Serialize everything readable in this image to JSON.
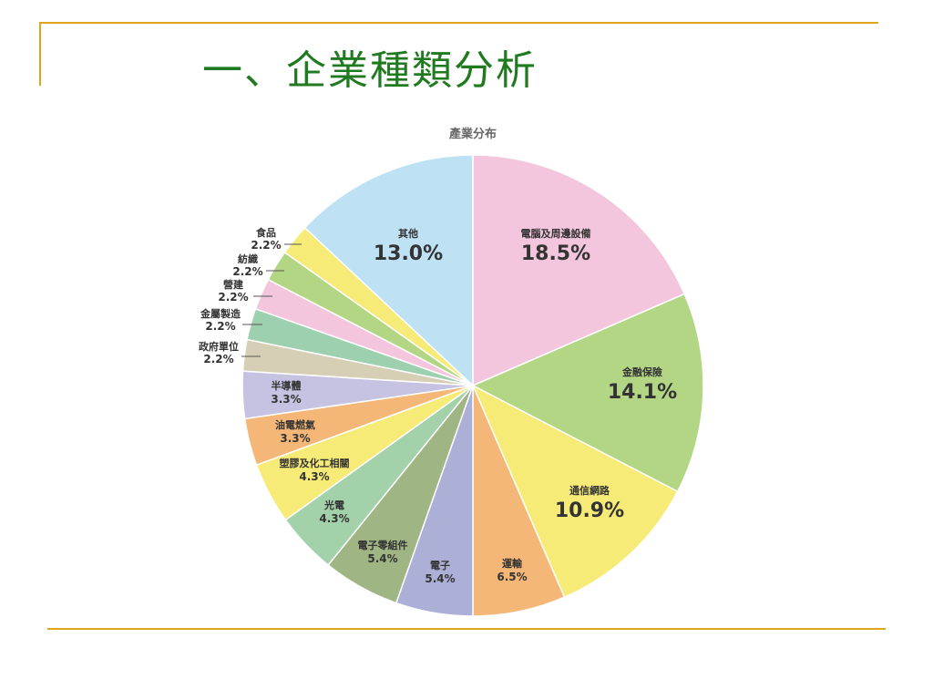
{
  "slide": {
    "title": "一、企業種類分析",
    "accent_color": "#E0A61A",
    "title_color": "#207A20"
  },
  "chart_data": {
    "type": "pie",
    "title": "產業分布",
    "unit": "%",
    "start": "top, clockwise",
    "slices": [
      {
        "label": "電腦及周邊設備",
        "value": 18.5,
        "display": "18.5%",
        "color": "#F4C6DD"
      },
      {
        "label": "金融保險",
        "value": 14.1,
        "display": "14.1%",
        "color": "#B2D684"
      },
      {
        "label": "通信網路",
        "value": 10.9,
        "display": "10.9%",
        "color": "#F7EB77"
      },
      {
        "label": "運輸",
        "value": 6.5,
        "display": "6.5%",
        "color": "#F5B777"
      },
      {
        "label": "電子",
        "value": 5.4,
        "display": "5.4%",
        "color": "#ACAFD6"
      },
      {
        "label": "電子零組件",
        "value": 5.4,
        "display": "5.4%",
        "color": "#9FB583"
      },
      {
        "label": "光電",
        "value": 4.3,
        "display": "4.3%",
        "color": "#A3D2AA"
      },
      {
        "label": "塑膠及化工相關",
        "value": 4.3,
        "display": "4.3%",
        "color": "#F7EB77"
      },
      {
        "label": "油電燃氣",
        "value": 3.3,
        "display": "3.3%",
        "color": "#F5B777"
      },
      {
        "label": "半導體",
        "value": 3.3,
        "display": "3.3%",
        "color": "#C6C2E1"
      },
      {
        "label": "政府單位",
        "value": 2.2,
        "display": "2.2%",
        "color": "#D6CFB5"
      },
      {
        "label": "金屬製造",
        "value": 2.2,
        "display": "2.2%",
        "color": "#9DD0AE"
      },
      {
        "label": "營建",
        "value": 2.2,
        "display": "2.2%",
        "color": "#F4C6DD"
      },
      {
        "label": "紡織",
        "value": 2.2,
        "display": "2.2%",
        "color": "#B2D684"
      },
      {
        "label": "食品",
        "value": 2.2,
        "display": "2.2%",
        "color": "#F7EB77"
      },
      {
        "label": "其他",
        "value": 13.0,
        "display": "13.0%",
        "color": "#BEE1F4"
      }
    ]
  }
}
